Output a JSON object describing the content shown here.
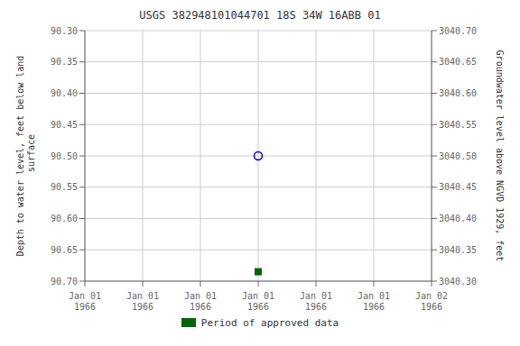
{
  "chart_data": {
    "type": "scatter",
    "title": "USGS 382948101044701 18S 34W 16ABB 01",
    "y_label": "Depth to water level, feet below land\n surface",
    "y2_label": "Groundwater level above NGVD 1929, feet",
    "categories": [
      "Jan 01\n1966",
      "Jan 01\n1966",
      "Jan 01\n1966",
      "Jan 01\n1966",
      "Jan 01\n1966",
      "Jan 01\n1966",
      "Jan 02\n1966"
    ],
    "series": [
      {
        "color": "#0000cc",
        "marker": "open_circle",
        "values": [
          null,
          null,
          null,
          90.5,
          null,
          null,
          null
        ]
      },
      {
        "color": "#006400",
        "marker": "square",
        "values": [
          null,
          null,
          null,
          90.685,
          null,
          null,
          null
        ]
      }
    ],
    "ylim": [
      90.7,
      90.3
    ],
    "yticks": [
      {
        "value": 90.3,
        "label": "90.30"
      },
      90.35,
      {
        "value": 90.4,
        "label": "90.40"
      },
      90.45,
      {
        "value": 90.5,
        "label": "90.50"
      },
      90.55,
      {
        "value": 90.6,
        "label": "90.60"
      },
      90.65,
      {
        "value": 90.7,
        "label": "90.70"
      }
    ],
    "y2lim": [
      3040.3,
      3040.7
    ],
    "y2ticks": [
      {
        "value": 3040.7,
        "label": "3040.70"
      },
      3040.65,
      {
        "value": 3040.6,
        "label": "3040.60"
      },
      3040.55,
      {
        "value": 3040.5,
        "label": "3040.50"
      },
      3040.45,
      {
        "value": 3040.4,
        "label": "3040.40"
      },
      3040.35,
      {
        "value": 3040.3,
        "label": "3040.30"
      }
    ],
    "grid": true,
    "legend": "bottom",
    "legend_entries": [
      {
        "label": "Period of approved data",
        "color": "#006400"
      }
    ]
  }
}
